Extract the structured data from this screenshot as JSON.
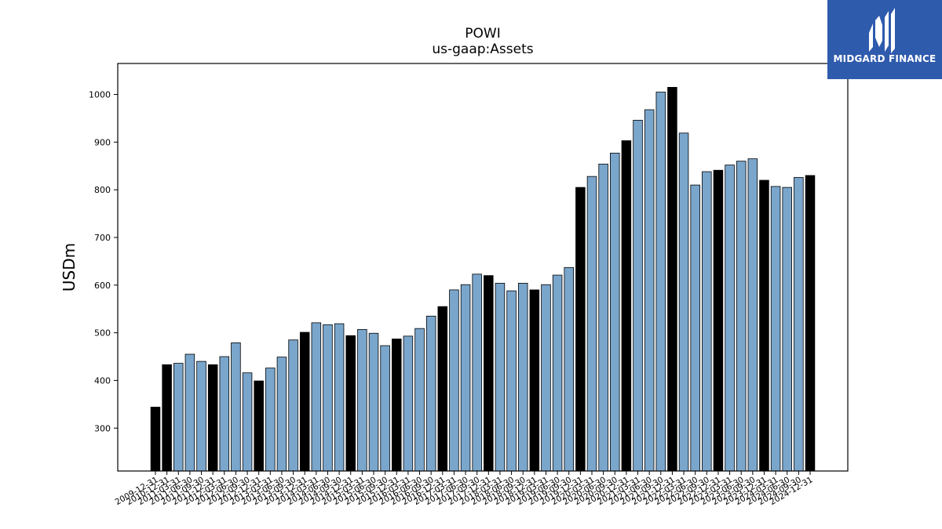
{
  "chart_data": {
    "type": "bar",
    "title": "POWI",
    "subtitle": "us-gaap:Assets",
    "ylabel": "USDm",
    "xlabel": "",
    "ylim": [
      210,
      1065
    ],
    "yticks": [
      300,
      400,
      500,
      600,
      700,
      800,
      900,
      1000
    ],
    "colors": {
      "annual": "#000000",
      "quarter": "#7aa6cc",
      "edge": "#000000"
    },
    "categories": [
      "2009-12-31",
      "2010-12-31",
      "2011-03-31",
      "2011-06-30",
      "2011-09-30",
      "2011-12-31",
      "2012-03-31",
      "2012-06-30",
      "2012-09-30",
      "2012-12-31",
      "2013-03-31",
      "2013-06-30",
      "2013-09-30",
      "2013-12-31",
      "2014-03-31",
      "2014-06-30",
      "2014-09-30",
      "2014-12-31",
      "2015-03-31",
      "2015-06-30",
      "2015-09-30",
      "2015-12-31",
      "2016-03-31",
      "2016-06-30",
      "2016-09-30",
      "2016-12-31",
      "2017-03-31",
      "2017-06-30",
      "2017-09-30",
      "2017-12-31",
      "2018-03-31",
      "2018-06-30",
      "2018-09-30",
      "2018-12-31",
      "2019-03-31",
      "2019-06-30",
      "2019-09-30",
      "2019-12-31",
      "2020-03-31",
      "2020-06-30",
      "2020-09-30",
      "2020-12-31",
      "2021-03-31",
      "2021-06-30",
      "2021-09-30",
      "2021-12-31",
      "2022-03-31",
      "2022-06-30",
      "2022-09-30",
      "2022-12-31",
      "2023-03-31",
      "2023-06-30",
      "2023-09-30",
      "2023-12-31",
      "2024-03-31",
      "2024-06-30",
      "2024-09-30",
      "2024-12-31"
    ],
    "values": [
      344,
      433,
      436,
      455,
      440,
      433,
      450,
      479,
      416,
      399,
      426,
      449,
      485,
      501,
      521,
      517,
      519,
      494,
      507,
      499,
      473,
      487,
      493,
      509,
      535,
      555,
      590,
      601,
      623,
      620,
      604,
      588,
      604,
      590,
      601,
      621,
      637,
      805,
      828,
      854,
      877,
      903,
      946,
      968,
      1005,
      1015,
      919,
      810,
      838,
      841,
      852,
      860,
      865,
      820,
      807,
      805,
      826,
      830
    ],
    "annual_flags": [
      true,
      true,
      false,
      false,
      false,
      true,
      false,
      false,
      false,
      true,
      false,
      false,
      false,
      true,
      false,
      false,
      false,
      true,
      false,
      false,
      false,
      true,
      false,
      false,
      false,
      true,
      false,
      false,
      false,
      true,
      false,
      false,
      false,
      true,
      false,
      false,
      false,
      true,
      false,
      false,
      false,
      true,
      false,
      false,
      false,
      true,
      false,
      false,
      false,
      true,
      false,
      false,
      false,
      true,
      false,
      false,
      false,
      true
    ]
  },
  "logo": {
    "text": "MIDGARD FINANCE"
  }
}
